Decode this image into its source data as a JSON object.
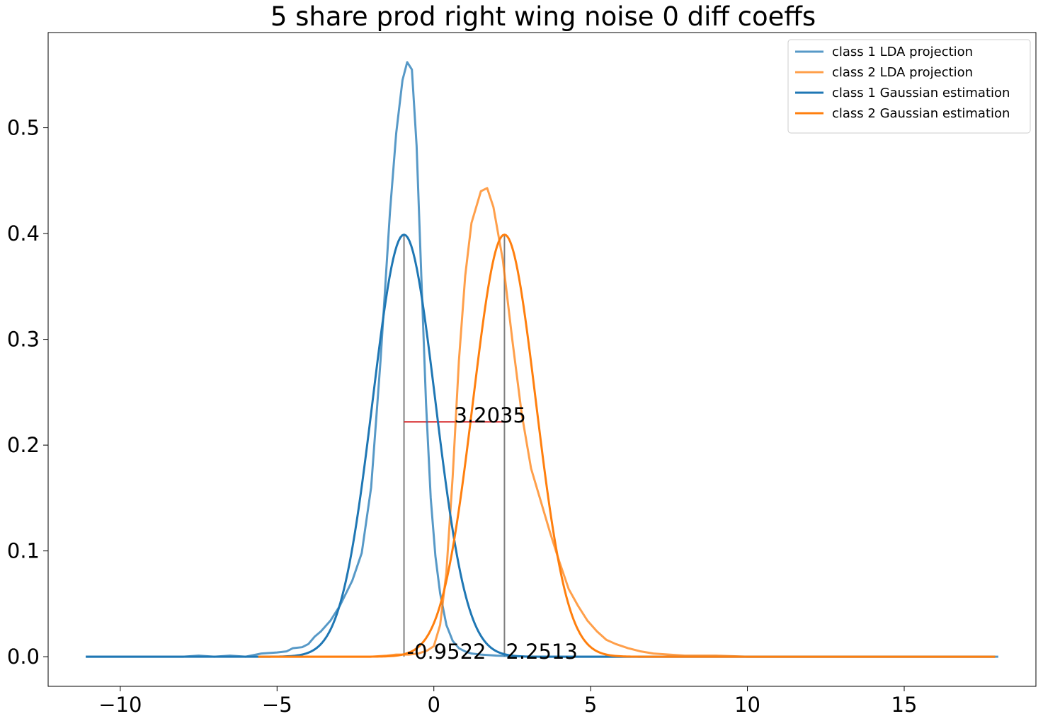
{
  "chart_data": {
    "type": "line",
    "title": "5 share prod right wing noise 0 diff coeffs",
    "xlabel": "",
    "ylabel": "",
    "xlim": [
      -12.3,
      19.2
    ],
    "ylim": [
      -0.028,
      0.59
    ],
    "x_ticks": [
      -10,
      -5,
      0,
      5,
      10,
      15
    ],
    "x_tick_labels": [
      "−10",
      "−5",
      "0",
      "5",
      "10",
      "15"
    ],
    "y_ticks": [
      0.0,
      0.1,
      0.2,
      0.3,
      0.4,
      0.5
    ],
    "y_tick_labels": [
      "0.0",
      "0.1",
      "0.2",
      "0.3",
      "0.4",
      "0.5"
    ],
    "grid": false,
    "legend_position": "top-right",
    "colors": {
      "class1": "#1f77b4",
      "class2": "#ff7f0e",
      "vline": "#808080",
      "hline": "#d62728"
    },
    "series": [
      {
        "name": "class 1 LDA projection",
        "color": "#1f77b4",
        "opacity": 0.75,
        "x": [
          -11.1,
          -10,
          -9,
          -8,
          -7.5,
          -7,
          -6.5,
          -6,
          -5.5,
          -5,
          -4.7,
          -4.5,
          -4.2,
          -4.0,
          -3.8,
          -3.6,
          -3.3,
          -3.0,
          -2.6,
          -2.3,
          -2.0,
          -1.7,
          -1.4,
          -1.2,
          -1.0,
          -0.85,
          -0.7,
          -0.55,
          -0.4,
          -0.25,
          -0.1,
          0.05,
          0.2,
          0.4,
          0.6,
          0.8,
          1.0,
          1.2,
          1.5,
          2.0,
          3.0,
          5.0,
          8.0,
          12.0,
          18.0
        ],
        "y": [
          0.0,
          0.0,
          0.0,
          0.0,
          0.001,
          0.0,
          0.001,
          0.0,
          0.003,
          0.004,
          0.005,
          0.008,
          0.009,
          0.012,
          0.019,
          0.024,
          0.034,
          0.048,
          0.072,
          0.098,
          0.16,
          0.28,
          0.42,
          0.495,
          0.545,
          0.562,
          0.555,
          0.483,
          0.36,
          0.24,
          0.15,
          0.095,
          0.06,
          0.03,
          0.015,
          0.008,
          0.005,
          0.003,
          0.002,
          0.001,
          0.0,
          0.0,
          0.0,
          0.0,
          0.0
        ]
      },
      {
        "name": "class 2 LDA projection",
        "color": "#ff7f0e",
        "opacity": 0.75,
        "x": [
          -5.6,
          -4,
          -2,
          -1.5,
          -1.2,
          -0.8,
          -0.5,
          -0.2,
          0.0,
          0.2,
          0.4,
          0.6,
          0.8,
          1.0,
          1.2,
          1.5,
          1.7,
          1.9,
          2.2,
          2.5,
          2.8,
          3.1,
          3.4,
          3.7,
          4.0,
          4.3,
          4.6,
          4.9,
          5.2,
          5.5,
          5.8,
          6.2,
          6.6,
          7.0,
          7.5,
          8.0,
          9.0,
          10.0,
          12.0,
          15.0,
          17.9
        ],
        "y": [
          0.0,
          0.0,
          0.0,
          0.001,
          0.002,
          0.002,
          0.003,
          0.006,
          0.01,
          0.03,
          0.08,
          0.17,
          0.28,
          0.36,
          0.41,
          0.44,
          0.443,
          0.425,
          0.375,
          0.3,
          0.23,
          0.178,
          0.148,
          0.118,
          0.09,
          0.064,
          0.048,
          0.034,
          0.024,
          0.016,
          0.012,
          0.008,
          0.005,
          0.003,
          0.002,
          0.001,
          0.001,
          0.0,
          0.0,
          0.0,
          0.0
        ]
      },
      {
        "name": "class 1 Gaussian estimation",
        "color": "#1f77b4",
        "opacity": 1,
        "gaussian": {
          "mean": -0.9522,
          "std": 1.0,
          "x_range": [
            -11.1,
            17.9
          ]
        }
      },
      {
        "name": "class 2 Gaussian estimation",
        "color": "#ff7f0e",
        "opacity": 1,
        "gaussian": {
          "mean": 2.2513,
          "std": 1.0,
          "x_range": [
            -5.6,
            17.9
          ]
        }
      }
    ],
    "annotations": {
      "mean1": {
        "x": -0.9522,
        "label": "-0.9522"
      },
      "mean2": {
        "x": 2.2513,
        "label": "2.2513"
      },
      "distance": {
        "y": 0.222,
        "label": "3.2035"
      }
    }
  }
}
